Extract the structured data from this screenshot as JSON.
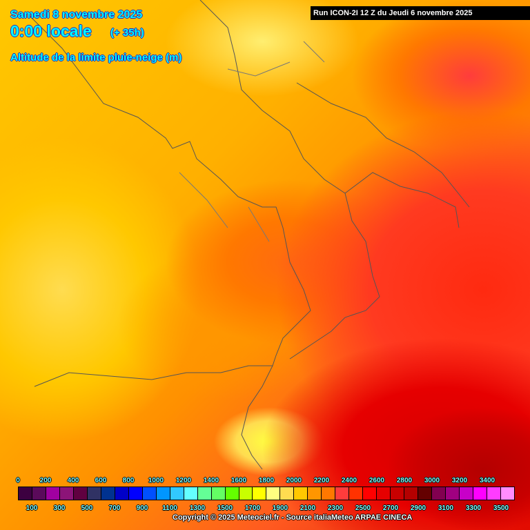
{
  "header": {
    "date": "Samedi 8 novembre 2025",
    "time": "0:00 locale",
    "lead": "(+ 35h)",
    "title": "Altitude de la limite pluie-neige (m)",
    "run": "Run ICON-2I 12 Z du Jeudi 6 novembre 2025"
  },
  "legend": {
    "top_labels": [
      "0",
      "200",
      "400",
      "600",
      "800",
      "1000",
      "1200",
      "1400",
      "1600",
      "1800",
      "2000",
      "2200",
      "2400",
      "2600",
      "2800",
      "3000",
      "3200",
      "3400"
    ],
    "bottom_labels": [
      "100",
      "300",
      "500",
      "700",
      "900",
      "1100",
      "1300",
      "1500",
      "1700",
      "1900",
      "2100",
      "2300",
      "2500",
      "2700",
      "2900",
      "3100",
      "3300",
      "3500"
    ],
    "colors": [
      "#3c0040",
      "#5a0a5a",
      "#a000a0",
      "#8c1478",
      "#600040",
      "#303264",
      "#003290",
      "#0000c8",
      "#0000ff",
      "#0050ff",
      "#0096ff",
      "#32c8ff",
      "#64ffff",
      "#64ff96",
      "#64ff64",
      "#64ff00",
      "#c8ff00",
      "#ffff00",
      "#ffff80",
      "#ffdc50",
      "#ffc800",
      "#ff9600",
      "#ff7800",
      "#ff3c3c",
      "#ff3200",
      "#ff0000",
      "#e60000",
      "#c80000",
      "#b40000",
      "#640000",
      "#820050",
      "#a00080",
      "#c800c8",
      "#ff00ff",
      "#ff3cff",
      "#ff8cff"
    ]
  },
  "footer": {
    "copyright": "Copyright © 2025 Meteociel.fr - Source italiaMeteo ARPAE CINECA"
  }
}
